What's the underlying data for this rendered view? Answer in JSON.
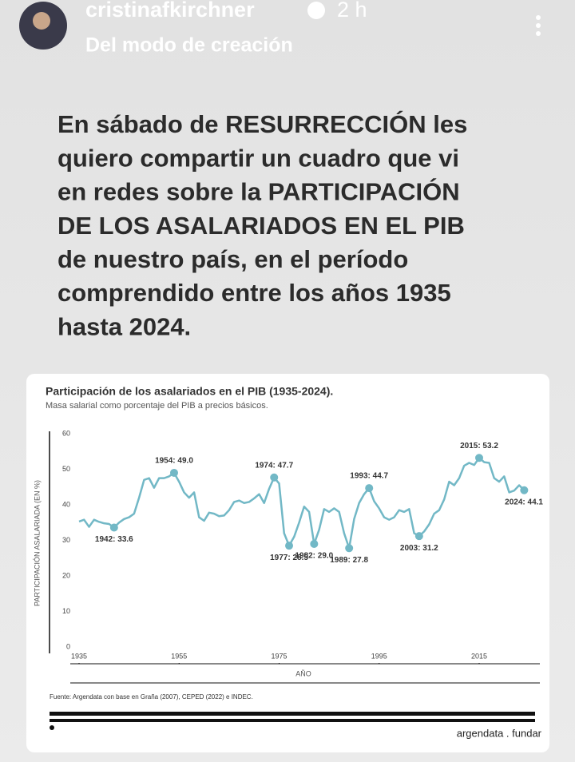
{
  "header": {
    "username": "cristinafkirchner",
    "time": "2 h",
    "subtitle": "Del modo de creación"
  },
  "post_text": [
    "En sábado de RESURRECCIÓN les",
    "quiero compartir un cuadro que vi",
    "en redes sobre la PARTICIPACIÓN",
    "DE LOS ASALARIADOS EN EL PIB",
    "de nuestro país, en el período",
    "comprendido entre los años 1935",
    "hasta 2024."
  ],
  "chart_data": {
    "type": "line",
    "title": "Participación de los asalariados en el PIB (1935-2024).",
    "subtitle": "Masa salarial como porcentaje del PIB a precios básicos.",
    "ylabel": "PARTICIPACIÓN ASALARIADA (EN %)",
    "xlabel": "AÑO",
    "x": [
      1935,
      1936,
      1937,
      1938,
      1939,
      1940,
      1941,
      1942,
      1943,
      1944,
      1945,
      1946,
      1947,
      1948,
      1949,
      1950,
      1951,
      1952,
      1953,
      1954,
      1955,
      1956,
      1957,
      1958,
      1959,
      1960,
      1961,
      1962,
      1963,
      1964,
      1965,
      1966,
      1967,
      1968,
      1969,
      1970,
      1971,
      1972,
      1973,
      1974,
      1975,
      1976,
      1977,
      1978,
      1979,
      1980,
      1981,
      1982,
      1983,
      1984,
      1985,
      1986,
      1987,
      1988,
      1989,
      1990,
      1991,
      1992,
      1993,
      1994,
      1995,
      1996,
      1997,
      1998,
      1999,
      2000,
      2001,
      2002,
      2003,
      2004,
      2005,
      2006,
      2007,
      2008,
      2009,
      2010,
      2011,
      2012,
      2013,
      2014,
      2015,
      2016,
      2017,
      2018,
      2019,
      2020,
      2021,
      2022,
      2023,
      2024
    ],
    "series": [
      {
        "name": "Participación asalariada",
        "color": "#72b8c6",
        "values": [
          35.3,
          35.8,
          33.8,
          35.8,
          35.2,
          34.8,
          34.6,
          33.6,
          35.0,
          36.0,
          36.5,
          37.5,
          42.0,
          47.0,
          47.5,
          44.8,
          47.5,
          47.5,
          48.0,
          49.0,
          46.5,
          43.5,
          42.0,
          43.5,
          36.5,
          35.5,
          37.8,
          37.5,
          36.8,
          37.0,
          38.5,
          40.8,
          41.2,
          40.5,
          40.8,
          41.8,
          43.0,
          40.5,
          44.5,
          47.7,
          46.0,
          32.0,
          28.5,
          31.0,
          35.0,
          39.5,
          38.0,
          29.0,
          33.0,
          38.8,
          38.0,
          39.0,
          38.0,
          32.0,
          27.8,
          36.0,
          40.5,
          43.0,
          44.7,
          41.0,
          39.0,
          36.5,
          35.8,
          36.5,
          38.5,
          38.0,
          38.8,
          32.0,
          31.2,
          32.5,
          34.5,
          37.5,
          38.5,
          41.5,
          46.5,
          45.5,
          47.5,
          51.0,
          51.8,
          51.2,
          53.2,
          52.0,
          51.8,
          47.5,
          46.5,
          48.0,
          43.5,
          44.0,
          45.5,
          44.1
        ]
      }
    ],
    "annotations": [
      {
        "x": 1942,
        "text": "1942: 33.6"
      },
      {
        "x": 1954,
        "text": "1954: 49.0"
      },
      {
        "x": 1974,
        "text": "1974: 47.7"
      },
      {
        "x": 1977,
        "text": "1977: 28.5"
      },
      {
        "x": 1982,
        "text": "1982: 29.0"
      },
      {
        "x": 1989,
        "text": "1989: 27.8"
      },
      {
        "x": 1993,
        "text": "1993: 44.7"
      },
      {
        "x": 2003,
        "text": "2003: 31.2"
      },
      {
        "x": 2015,
        "text": "2015: 53.2"
      },
      {
        "x": 2024,
        "text": "2024: 44.1"
      }
    ],
    "xlim": [
      1935,
      2027
    ],
    "xticks": [
      1935,
      1955,
      1975,
      1995,
      2015
    ],
    "ylim": [
      0,
      60
    ],
    "yticks": [
      0,
      10,
      20,
      30,
      40,
      50,
      60
    ],
    "source": "Fuente: Argendata con base en Graña (2007), CEPED (2022) e INDEC.",
    "brand": "argendata . fundar"
  }
}
